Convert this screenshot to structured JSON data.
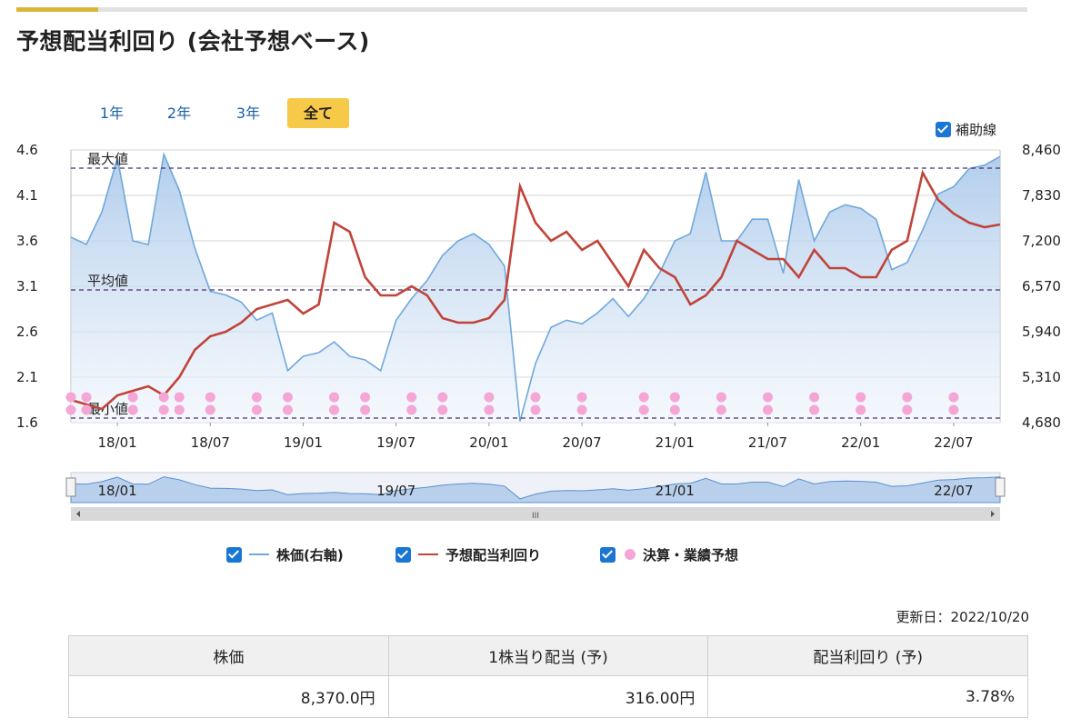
{
  "title": "予想配当利回り (会社予想ベース)",
  "range_buttons": [
    "1年",
    "2年",
    "3年",
    "全て"
  ],
  "active_range": "全て",
  "aux_toggle": {
    "label": "補助線",
    "checked": true
  },
  "legend": [
    {
      "label": "株価(右軸)",
      "color": "#6fa8dc",
      "checked": true
    },
    {
      "label": "予想配当利回り",
      "color": "#c0443a",
      "checked": true
    },
    {
      "label": "決算・業績予想",
      "color": "#f4a6d6",
      "checked": true
    }
  ],
  "updated": "更新日：2022/10/20",
  "summary": {
    "headers": [
      "株価",
      "1株当り配当 (予)",
      "配当利回り (予)"
    ],
    "values": [
      "8,370.0円",
      "316.00円",
      "3.78%"
    ]
  },
  "navigator": {
    "labels": [
      "18/01",
      "19/07",
      "21/01",
      "22/07"
    ],
    "scroll_grip": "III"
  },
  "chart_data": {
    "type": "line",
    "x_tick_labels": [
      "18/01",
      "18/07",
      "19/01",
      "19/07",
      "20/01",
      "20/07",
      "21/01",
      "21/07",
      "22/01",
      "22/07"
    ],
    "x_range": [
      "2017-10",
      "2022-10"
    ],
    "y_left": {
      "ticks": [
        "1.6",
        "2.1",
        "2.6",
        "3.1",
        "3.6",
        "4.1",
        "4.6"
      ],
      "range": [
        1.6,
        4.6
      ]
    },
    "y_right": {
      "ticks": [
        "4,680",
        "5,310",
        "5,940",
        "6,570",
        "7,200",
        "7,830",
        "8,460"
      ],
      "range": [
        4680,
        8460
      ]
    },
    "reference_lines": [
      {
        "label": "最大値",
        "value": 4.4
      },
      {
        "label": "平均値",
        "value": 3.06
      },
      {
        "label": "最小値",
        "value": 1.65
      }
    ],
    "grid": true,
    "series": [
      {
        "name": "株価(右軸)",
        "axis": "right",
        "color": "#6fa8dc",
        "area": true,
        "x": [
          "2017-10",
          "2017-11",
          "2017-12",
          "2018-01",
          "2018-02",
          "2018-03",
          "2018-04",
          "2018-05",
          "2018-06",
          "2018-07",
          "2018-08",
          "2018-09",
          "2018-10",
          "2018-11",
          "2018-12",
          "2019-01",
          "2019-02",
          "2019-03",
          "2019-04",
          "2019-05",
          "2019-06",
          "2019-07",
          "2019-08",
          "2019-09",
          "2019-10",
          "2019-11",
          "2019-12",
          "2020-01",
          "2020-02",
          "2020-03",
          "2020-04",
          "2020-05",
          "2020-06",
          "2020-07",
          "2020-08",
          "2020-09",
          "2020-10",
          "2020-11",
          "2020-12",
          "2021-01",
          "2021-02",
          "2021-03",
          "2021-04",
          "2021-05",
          "2021-06",
          "2021-07",
          "2021-08",
          "2021-09",
          "2021-10",
          "2021-11",
          "2021-12",
          "2022-01",
          "2022-02",
          "2022-03",
          "2022-04",
          "2022-05",
          "2022-06",
          "2022-07",
          "2022-08",
          "2022-09",
          "2022-10"
        ],
        "values": [
          7250,
          7150,
          7600,
          8350,
          7200,
          7150,
          8400,
          7900,
          7100,
          6500,
          6450,
          6350,
          6100,
          6200,
          5400,
          5600,
          5650,
          5800,
          5600,
          5550,
          5400,
          6100,
          6400,
          6650,
          7000,
          7200,
          7300,
          7150,
          6850,
          4700,
          5500,
          6000,
          6100,
          6050,
          6200,
          6400,
          6150,
          6400,
          6750,
          7200,
          7300,
          8150,
          7200,
          7200,
          7500,
          7500,
          6750,
          8050,
          7200,
          7600,
          7700,
          7650,
          7500,
          6800,
          6900,
          7350,
          7850,
          7950,
          8200,
          8250,
          8370
        ]
      },
      {
        "name": "予想配当利回り",
        "axis": "left",
        "color": "#c0443a",
        "area": false,
        "x": [
          "2017-10",
          "2017-11",
          "2017-12",
          "2018-01",
          "2018-02",
          "2018-03",
          "2018-04",
          "2018-05",
          "2018-06",
          "2018-07",
          "2018-08",
          "2018-09",
          "2018-10",
          "2018-11",
          "2018-12",
          "2019-01",
          "2019-02",
          "2019-03",
          "2019-04",
          "2019-05",
          "2019-06",
          "2019-07",
          "2019-08",
          "2019-09",
          "2019-10",
          "2019-11",
          "2019-12",
          "2020-01",
          "2020-02",
          "2020-03",
          "2020-04",
          "2020-05",
          "2020-06",
          "2020-07",
          "2020-08",
          "2020-09",
          "2020-10",
          "2020-11",
          "2020-12",
          "2021-01",
          "2021-02",
          "2021-03",
          "2021-04",
          "2021-05",
          "2021-06",
          "2021-07",
          "2021-08",
          "2021-09",
          "2021-10",
          "2021-11",
          "2021-12",
          "2022-01",
          "2022-02",
          "2022-03",
          "2022-04",
          "2022-05",
          "2022-06",
          "2022-07",
          "2022-08",
          "2022-09",
          "2022-10"
        ],
        "values": [
          1.85,
          1.8,
          1.75,
          1.9,
          1.95,
          2.0,
          1.9,
          2.1,
          2.4,
          2.55,
          2.6,
          2.7,
          2.85,
          2.9,
          2.95,
          2.8,
          2.9,
          3.8,
          3.7,
          3.2,
          3.0,
          3.0,
          3.1,
          3.0,
          2.75,
          2.7,
          2.7,
          2.75,
          2.95,
          4.2,
          3.8,
          3.6,
          3.7,
          3.5,
          3.6,
          3.35,
          3.1,
          3.5,
          3.3,
          3.2,
          2.9,
          3.0,
          3.2,
          3.6,
          3.5,
          3.4,
          3.4,
          3.2,
          3.5,
          3.3,
          3.3,
          3.2,
          3.2,
          3.5,
          3.6,
          4.35,
          4.05,
          3.9,
          3.8,
          3.75,
          3.78
        ]
      }
    ],
    "event_markers": {
      "name": "決算・業績予想",
      "color": "#f4a6d6",
      "dates": [
        "2017-10",
        "2017-11",
        "2018-02",
        "2018-04",
        "2018-05",
        "2018-07",
        "2018-10",
        "2018-12",
        "2019-03",
        "2019-03",
        "2019-05",
        "2019-08",
        "2019-10",
        "2020-01",
        "2020-04",
        "2020-07",
        "2020-11",
        "2021-01",
        "2021-04",
        "2021-07",
        "2021-10",
        "2022-01",
        "2022-04",
        "2022-07"
      ]
    }
  }
}
